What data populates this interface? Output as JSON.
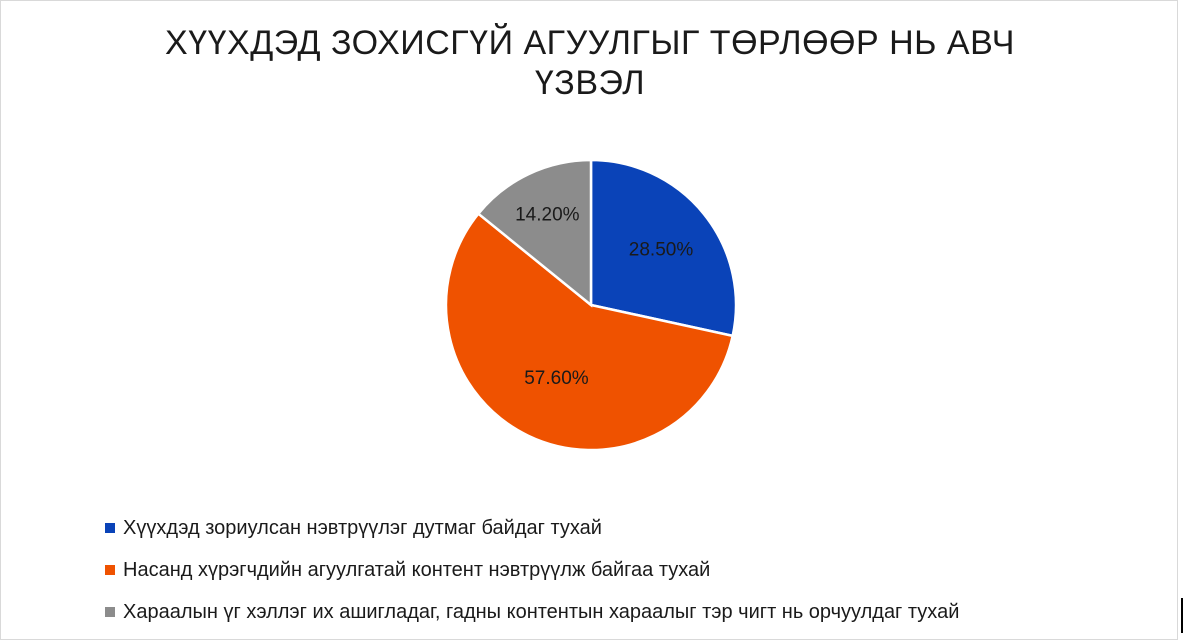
{
  "chart_data": {
    "type": "pie",
    "title_lines": [
      "ХҮҮХДЭД ЗОХИСГҮЙ АГУУЛГЫГ ТӨРЛӨӨР НЬ АВЧ",
      "ҮЗВЭЛ"
    ],
    "slices": [
      {
        "label": "Хүүхдэд зориулсан нэвтрүүлэг дутмаг байдаг тухай",
        "value": 28.5,
        "display": "28.50%",
        "color": "#0a43b8"
      },
      {
        "label": "Насанд хүрэгчдийн агуулгатай контент нэвтрүүлж байгаа тухай",
        "value": 57.6,
        "display": "57.60%",
        "color": "#ef5200"
      },
      {
        "label": "Хараалын үг хэллэг их ашигладаг, гадны контентын хараалыг тэр чигт нь орчуулдаг тухай",
        "value": 14.2,
        "display": "14.20%",
        "color": "#8c8c8c"
      }
    ],
    "legend_position": "bottom-left"
  }
}
